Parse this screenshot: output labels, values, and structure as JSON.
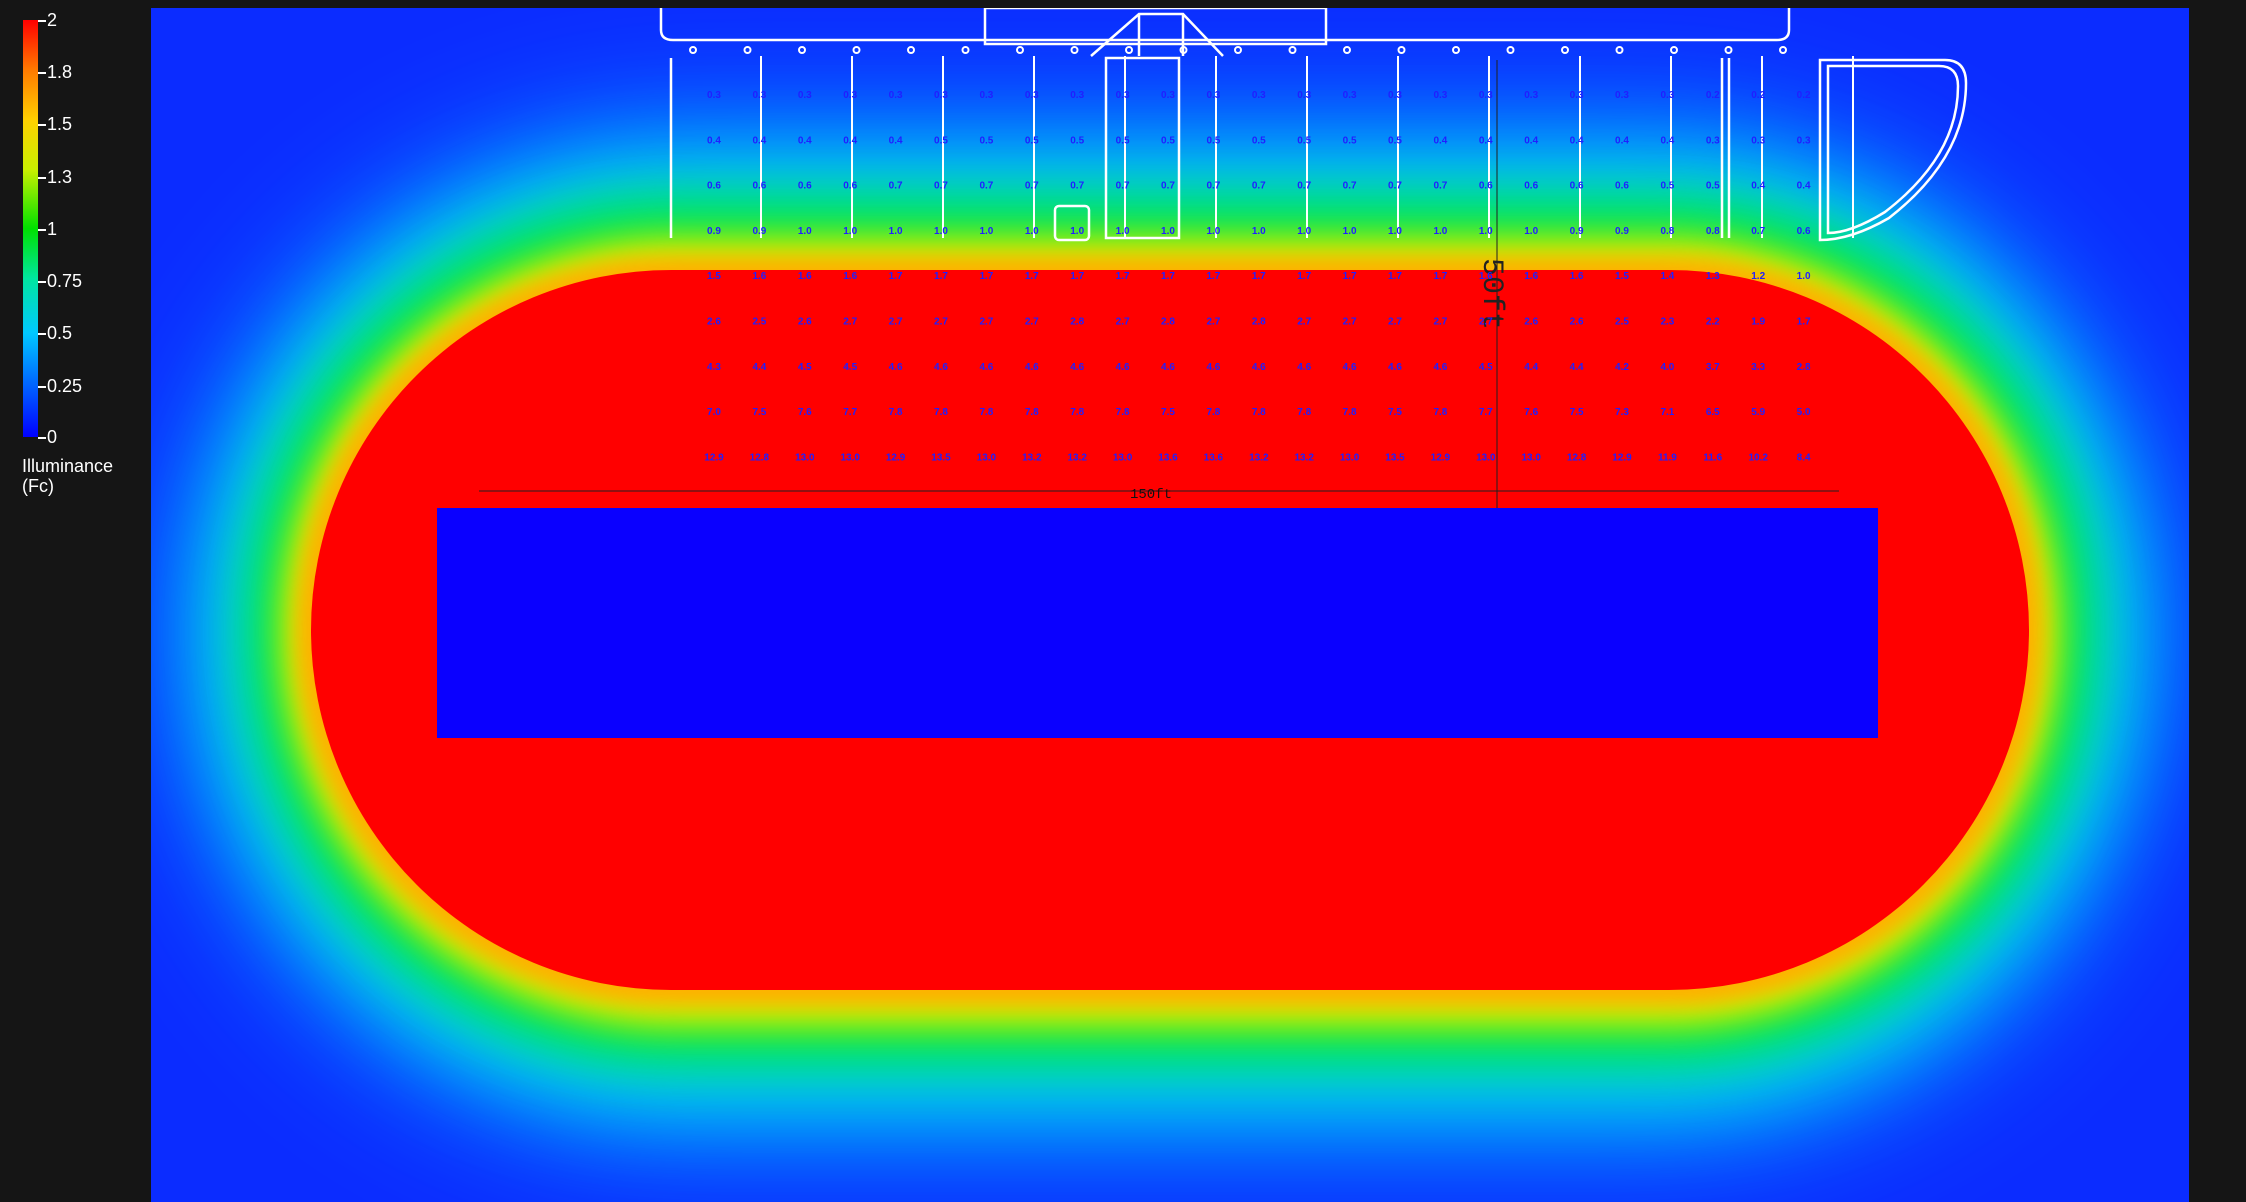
{
  "legend": {
    "ticks": [
      "2",
      "1.8",
      "1.5",
      "1.3",
      "1",
      "0.75",
      "0.5",
      "0.25",
      "0"
    ],
    "title": "Illuminance\n(Fc)"
  },
  "drawing": {
    "dimension_horizontal": "150ft",
    "dimension_vertical": "50ft"
  },
  "grid": {
    "rows": [
      [
        "0.3",
        "0.3",
        "0.3",
        "0.3",
        "0.3",
        "0.3",
        "0.3",
        "0.3",
        "0.3",
        "0.3",
        "0.3",
        "0.3",
        "0.3",
        "0.3",
        "0.3",
        "0.3",
        "0.3",
        "0.3",
        "0.3",
        "0.3",
        "0.3",
        "0.3",
        "0.2",
        "0.2",
        "0.2"
      ],
      [
        "0.4",
        "0.4",
        "0.4",
        "0.4",
        "0.4",
        "0.5",
        "0.5",
        "0.5",
        "0.5",
        "0.5",
        "0.5",
        "0.5",
        "0.5",
        "0.5",
        "0.5",
        "0.5",
        "0.4",
        "0.4",
        "0.4",
        "0.4",
        "0.4",
        "0.4",
        "0.3",
        "0.3",
        "0.3"
      ],
      [
        "0.6",
        "0.6",
        "0.6",
        "0.6",
        "0.7",
        "0.7",
        "0.7",
        "0.7",
        "0.7",
        "0.7",
        "0.7",
        "0.7",
        "0.7",
        "0.7",
        "0.7",
        "0.7",
        "0.7",
        "0.6",
        "0.6",
        "0.6",
        "0.6",
        "0.5",
        "0.5",
        "0.4",
        "0.4"
      ],
      [
        "0.9",
        "0.9",
        "1.0",
        "1.0",
        "1.0",
        "1.0",
        "1.0",
        "1.0",
        "1.0",
        "1.0",
        "1.0",
        "1.0",
        "1.0",
        "1.0",
        "1.0",
        "1.0",
        "1.0",
        "1.0",
        "1.0",
        "0.9",
        "0.9",
        "0.8",
        "0.8",
        "0.7",
        "0.6"
      ],
      [
        "1.5",
        "1.6",
        "1.6",
        "1.6",
        "1.7",
        "1.7",
        "1.7",
        "1.7",
        "1.7",
        "1.7",
        "1.7",
        "1.7",
        "1.7",
        "1.7",
        "1.7",
        "1.7",
        "1.7",
        "1.6",
        "1.6",
        "1.6",
        "1.5",
        "1.4",
        "1.3",
        "1.2",
        "1.0"
      ],
      [
        "2.6",
        "2.5",
        "2.6",
        "2.7",
        "2.7",
        "2.7",
        "2.7",
        "2.7",
        "2.8",
        "2.7",
        "2.8",
        "2.7",
        "2.8",
        "2.7",
        "2.7",
        "2.7",
        "2.7",
        "2.7",
        "2.6",
        "2.6",
        "2.5",
        "2.3",
        "2.2",
        "1.9",
        "1.7"
      ],
      [
        "4.3",
        "4.4",
        "4.5",
        "4.5",
        "4.6",
        "4.6",
        "4.6",
        "4.6",
        "4.6",
        "4.6",
        "4.6",
        "4.6",
        "4.6",
        "4.6",
        "4.6",
        "4.6",
        "4.6",
        "4.5",
        "4.4",
        "4.4",
        "4.2",
        "4.0",
        "3.7",
        "3.3",
        "2.8"
      ],
      [
        "7.0",
        "7.5",
        "7.6",
        "7.7",
        "7.8",
        "7.8",
        "7.8",
        "7.8",
        "7.8",
        "7.8",
        "7.5",
        "7.8",
        "7.8",
        "7.8",
        "7.8",
        "7.5",
        "7.8",
        "7.7",
        "7.6",
        "7.5",
        "7.3",
        "7.1",
        "6.5",
        "5.9",
        "5.0"
      ],
      [
        "12.9",
        "12.8",
        "13.0",
        "13.0",
        "12.9",
        "13.5",
        "13.0",
        "13.2",
        "13.2",
        "13.0",
        "13.6",
        "13.6",
        "13.2",
        "13.2",
        "13.0",
        "13.5",
        "12.9",
        "13.0",
        "13.0",
        "12.8",
        "12.9",
        "11.9",
        "11.6",
        "10.2",
        "8.4"
      ]
    ]
  }
}
